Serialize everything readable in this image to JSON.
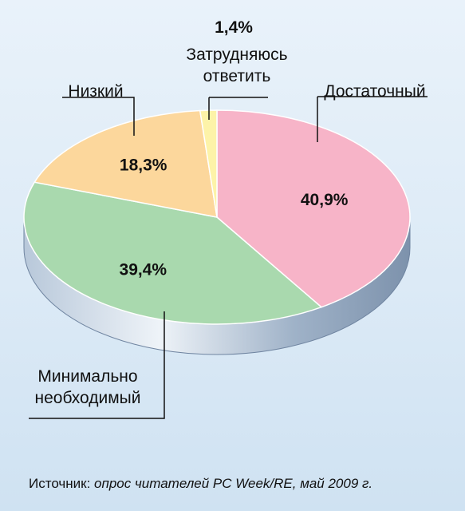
{
  "chart_data": {
    "type": "pie",
    "slices": [
      {
        "label": "Достаточный",
        "value": 40.9,
        "display": "40,9%",
        "color": "#f7b4c8"
      },
      {
        "label": "Минимально необходимый",
        "label_lines": [
          "Минимально",
          "необходимый"
        ],
        "value": 39.4,
        "display": "39,4%",
        "color": "#a9d9ae"
      },
      {
        "label": "Низкий",
        "value": 18.3,
        "display": "18,3%",
        "color": "#fcd79c"
      },
      {
        "label": "Затрудняюсь ответить",
        "label_lines": [
          "Затрудняюсь",
          "ответить"
        ],
        "value": 1.4,
        "display": "1,4%",
        "color": "#fdf3a8"
      }
    ],
    "side_color": "#8a9fb8"
  },
  "source": {
    "prefix": "Источник: ",
    "text": "опрос читателей PC Week/RE, май 2009 г."
  }
}
